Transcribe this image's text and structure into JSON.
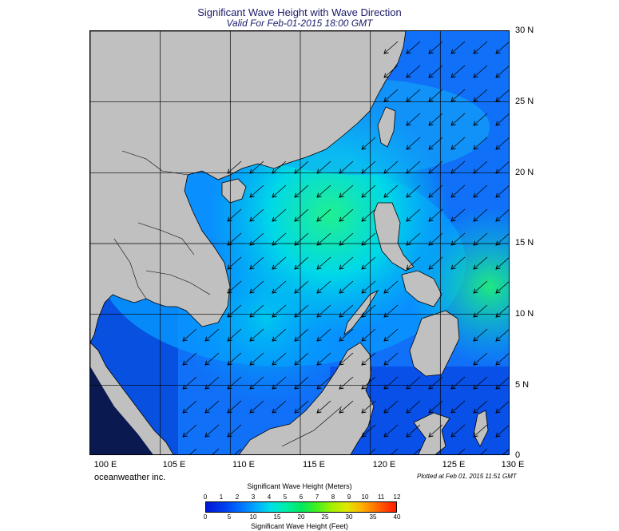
{
  "title": "Significant Wave Height with Wave Direction",
  "subtitle": "Valid For Feb-01-2015 18:00 GMT",
  "credit": "oceanweather inc.",
  "plotted": "Plotted at Feb 01, 2015 11:51 GMT",
  "map": {
    "lat_labels": [
      "30 N",
      "25 N",
      "20 N",
      "15 N",
      "10 N",
      "5 N",
      "0"
    ],
    "lon_labels": [
      "100 E",
      "105 E",
      "110 E",
      "115 E",
      "120 E",
      "125 E",
      "130 E"
    ],
    "land_color": "#c0c0c0",
    "wave_direction": "southwest"
  },
  "legend": {
    "meters_title": "Significant Wave Height (Meters)",
    "feet_title": "Significant Wave Height (Feet)",
    "meters_ticks": [
      "0",
      "1",
      "2",
      "3",
      "4",
      "5",
      "6",
      "7",
      "8",
      "9",
      "10",
      "11",
      "12"
    ],
    "feet_ticks": [
      "0",
      "5",
      "10",
      "15",
      "20",
      "25",
      "30",
      "35",
      "40"
    ],
    "colors": [
      "#0018d6",
      "#0070ff",
      "#00a8ff",
      "#00e0e8",
      "#00f0a8",
      "#40f020",
      "#e0e800",
      "#ff6a00",
      "#ff1800"
    ]
  }
}
